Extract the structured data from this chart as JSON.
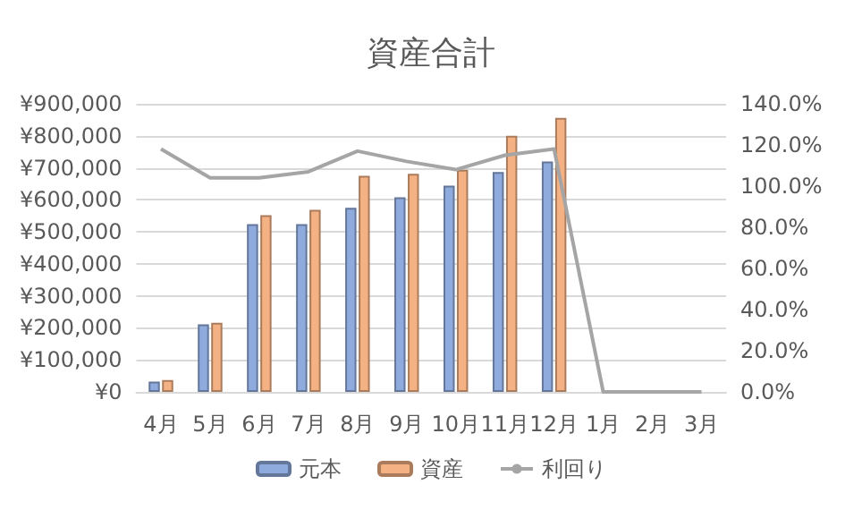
{
  "chart_data": {
    "type": "bar",
    "title": "資産合計",
    "categories": [
      "4月",
      "5月",
      "6月",
      "7月",
      "8月",
      "9月",
      "10月",
      "11月",
      "12月",
      "1月",
      "2月",
      "3月"
    ],
    "series": [
      {
        "name": "元本",
        "color": "#8faadc",
        "values": [
          32000,
          211000,
          524000,
          524000,
          575000,
          608000,
          644000,
          687000,
          720000,
          null,
          null,
          null
        ]
      },
      {
        "name": "資産",
        "color": "#f4b183",
        "values": [
          37000,
          216000,
          552000,
          569000,
          675000,
          681000,
          694000,
          800000,
          856000,
          null,
          null,
          null
        ]
      },
      {
        "name": "利回り",
        "type": "line",
        "axis": "y2",
        "color": "#a5a5a5",
        "values": [
          118,
          104,
          104,
          107,
          117,
          112,
          108,
          115,
          118,
          0,
          0,
          0
        ]
      }
    ],
    "ylim": [
      0,
      900000
    ],
    "yticks": [
      {
        "value": 0,
        "label": "¥0"
      },
      {
        "value": 100000,
        "label": "¥100,000"
      },
      {
        "value": 200000,
        "label": "¥200,000"
      },
      {
        "value": 300000,
        "label": "¥300,000"
      },
      {
        "value": 400000,
        "label": "¥400,000"
      },
      {
        "value": 500000,
        "label": "¥500,000"
      },
      {
        "value": 600000,
        "label": "¥600,000"
      },
      {
        "value": 700000,
        "label": "¥700,000"
      },
      {
        "value": 800000,
        "label": "¥800,000"
      },
      {
        "value": 900000,
        "label": "¥900,000"
      }
    ],
    "y2lim": [
      0,
      140
    ],
    "y2ticks": [
      {
        "value": 0,
        "label": "0.0%"
      },
      {
        "value": 20,
        "label": "20.0%"
      },
      {
        "value": 40,
        "label": "40.0%"
      },
      {
        "value": 60,
        "label": "60.0%"
      },
      {
        "value": 80,
        "label": "80.0%"
      },
      {
        "value": 100,
        "label": "100.0%"
      },
      {
        "value": 120,
        "label": "120.0%"
      },
      {
        "value": 140,
        "label": "140.0%"
      }
    ],
    "grid": "y",
    "legend": "bottom",
    "marker": "none"
  }
}
